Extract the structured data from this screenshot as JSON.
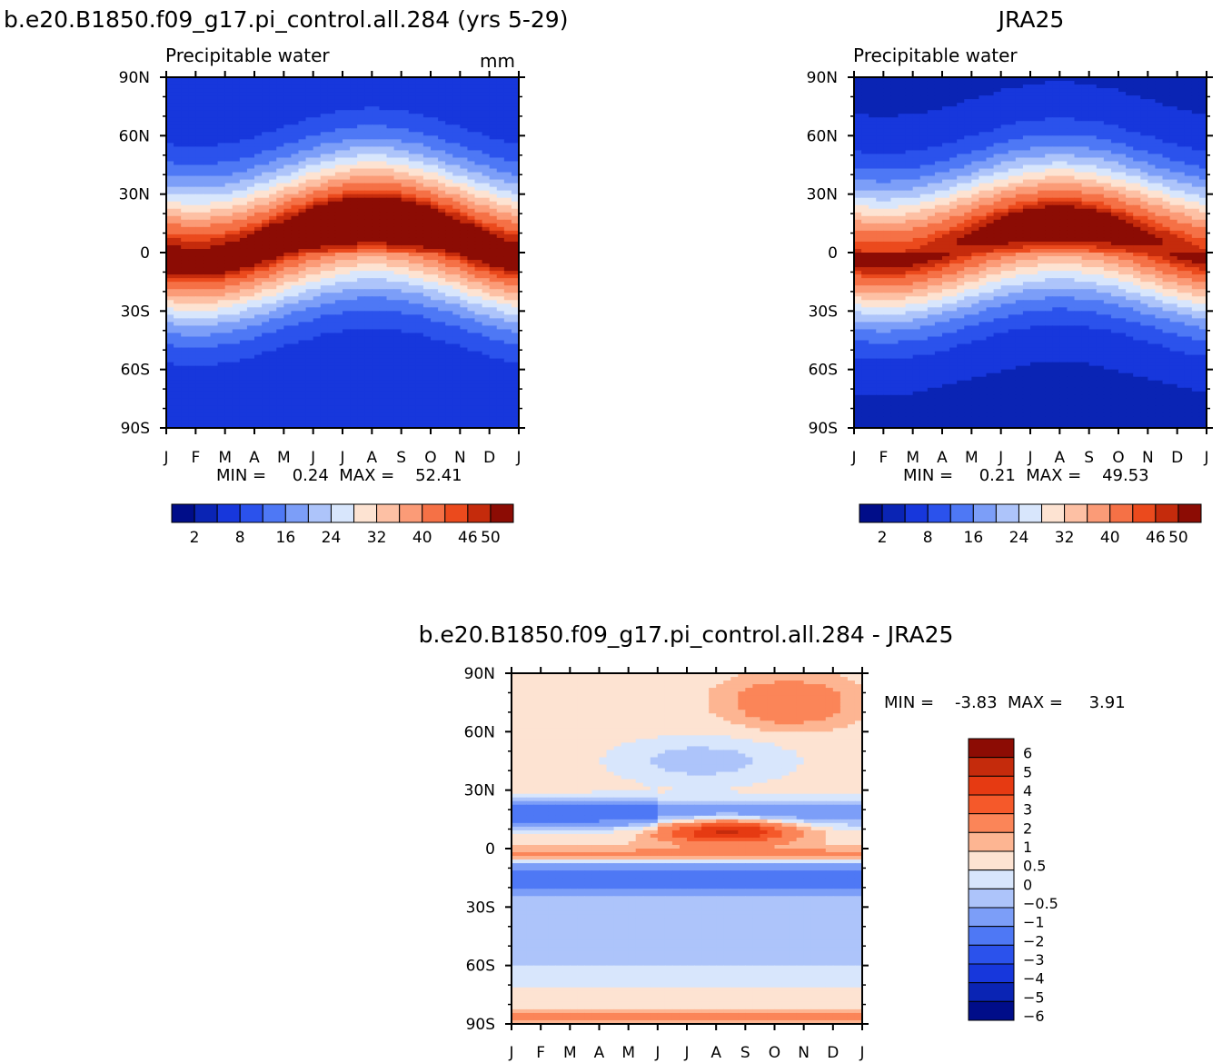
{
  "chart_data": [
    {
      "type": "heatmap",
      "title": "b.e20.B1850.f09_g17.pi_control.all.284 (yrs 5-29)",
      "subtitle": "Precipitable water",
      "units": "mm",
      "x_ticks": [
        "J",
        "F",
        "M",
        "A",
        "M",
        "J",
        "J",
        "A",
        "S",
        "O",
        "N",
        "D",
        "J"
      ],
      "y_ticks": [
        "90N",
        "60N",
        "30N",
        "0",
        "30S",
        "60S",
        "90S"
      ],
      "y_range": [
        -90,
        90
      ],
      "field": {
        "peak_value": 52,
        "peak_lat": 8,
        "peak_month": 7.2,
        "seasonal_shift": 9,
        "pole_value": 4
      },
      "min_text": "MIN =     0.24  MAX =    52.41",
      "colorbar_labels": [
        "2",
        "8",
        "16",
        "24",
        "32",
        "40",
        "46",
        "50"
      ],
      "colorbar_colors": [
        "#000d89",
        "#0a24b4",
        "#1737dc",
        "#2b52ec",
        "#4e78f5",
        "#7c9ef8",
        "#adc4fa",
        "#d8e6fc",
        "#fde3d2",
        "#fdc0a4",
        "#fb9b77",
        "#f57146",
        "#eb4a1d",
        "#c52b0c",
        "#8c0c04"
      ]
    },
    {
      "type": "heatmap",
      "title": "JRA25",
      "subtitle": "Precipitable water",
      "x_ticks": [
        "J",
        "F",
        "M",
        "A",
        "M",
        "J",
        "J",
        "A",
        "S",
        "O",
        "N",
        "D",
        "J"
      ],
      "y_ticks": [
        "90N",
        "60N",
        "30N",
        "0",
        "30S",
        "60S",
        "90S"
      ],
      "y_range": [
        -90,
        90
      ],
      "field": {
        "peak_value": 49,
        "peak_lat": 7,
        "peak_month": 7.0,
        "seasonal_shift": 8,
        "pole_value": 3
      },
      "min_text": "MIN =     0.21  MAX =    49.53",
      "colorbar_labels": [
        "2",
        "8",
        "16",
        "24",
        "32",
        "40",
        "46",
        "50"
      ],
      "colorbar_colors": [
        "#000d89",
        "#0a24b4",
        "#1737dc",
        "#2b52ec",
        "#4e78f5",
        "#7c9ef8",
        "#adc4fa",
        "#d8e6fc",
        "#fde3d2",
        "#fdc0a4",
        "#fb9b77",
        "#f57146",
        "#eb4a1d",
        "#c52b0c",
        "#8c0c04"
      ]
    },
    {
      "type": "heatmap",
      "title": "b.e20.B1850.f09_g17.pi_control.all.284 - JRA25",
      "x_ticks": [
        "J",
        "F",
        "M",
        "A",
        "M",
        "J",
        "J",
        "A",
        "S",
        "O",
        "N",
        "D",
        "J"
      ],
      "y_ticks": [
        "90N",
        "60N",
        "30N",
        "0",
        "30S",
        "60S",
        "90S"
      ],
      "y_range": [
        -90,
        90
      ],
      "min_text": "MIN =    -3.83  MAX =     3.91",
      "colorbar_labels": [
        "6",
        "5",
        "4",
        "3",
        "2",
        "1",
        "0.5",
        "0",
        "-0.5",
        "-1",
        "-2",
        "-3",
        "-4",
        "-5",
        "-6"
      ],
      "colorbar_colors": [
        "#8c0c04",
        "#c52b0c",
        "#e63a12",
        "#f5592a",
        "#fb8558",
        "#fdb592",
        "#fde3d2",
        "#d8e6fc",
        "#adc4fa",
        "#7c9ef8",
        "#4e78f5",
        "#2b52ec",
        "#1737dc",
        "#0a24b4",
        "#000d89"
      ]
    }
  ]
}
